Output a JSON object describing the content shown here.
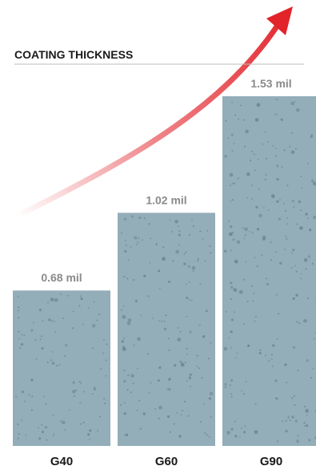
{
  "chart_data": {
    "type": "bar",
    "title": "COATING THICKNESS",
    "categories": [
      "G40",
      "G60",
      "G90"
    ],
    "values": [
      0.68,
      1.02,
      1.53
    ],
    "value_labels": [
      "0.68 mil",
      "1.02 mil",
      "1.53 mil"
    ],
    "ylim": [
      0,
      1.53
    ],
    "grid": false,
    "legend": "none"
  },
  "colors": {
    "bar": "#93adb9",
    "bar_dot": "#6e8791",
    "value_label": "#8a8a8a",
    "title": "#1a1a1a",
    "title_rule": "#bdbdbd",
    "arrow": "#e2232a"
  },
  "decoration": {
    "arrow_icon": "trend-up-arrow-icon"
  }
}
